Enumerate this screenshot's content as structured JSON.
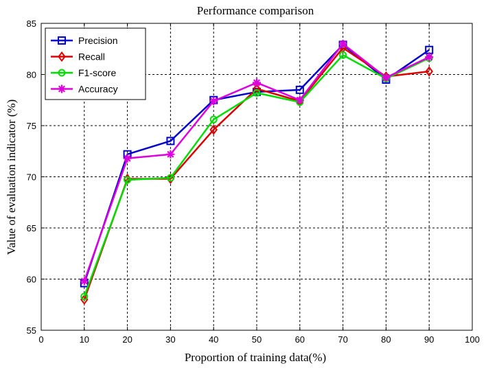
{
  "chart_data": {
    "type": "line",
    "title": "Performance comparison",
    "xlabel": "Proportion of training data(%)",
    "ylabel": "Value of evaluation indicator (%)",
    "xlim": [
      0,
      100
    ],
    "ylim": [
      55,
      85
    ],
    "xticks": [
      0,
      10,
      20,
      30,
      40,
      50,
      60,
      70,
      80,
      90,
      100
    ],
    "yticks": [
      55,
      60,
      65,
      70,
      75,
      80,
      85
    ],
    "grid": true,
    "legend_position": "top-left",
    "x": [
      10,
      20,
      30,
      40,
      50,
      60,
      70,
      80,
      90
    ],
    "series": [
      {
        "name": "Precision",
        "color": "#0000cc",
        "marker": "square",
        "values": [
          59.6,
          72.2,
          73.5,
          77.5,
          78.3,
          78.5,
          82.9,
          79.5,
          82.4
        ]
      },
      {
        "name": "Recall",
        "color": "#dd0000",
        "marker": "diamond",
        "values": [
          58.0,
          69.8,
          69.8,
          74.6,
          78.6,
          77.4,
          82.6,
          79.8,
          80.3
        ]
      },
      {
        "name": "F1-score",
        "color": "#00dd00",
        "marker": "circle",
        "values": [
          58.3,
          69.7,
          69.9,
          75.6,
          78.2,
          77.3,
          81.9,
          79.6,
          81.6
        ]
      },
      {
        "name": "Accuracy",
        "color": "#dd00dd",
        "marker": "star",
        "values": [
          59.8,
          71.8,
          72.2,
          77.4,
          79.2,
          77.5,
          83.0,
          79.7,
          81.7
        ]
      }
    ]
  }
}
